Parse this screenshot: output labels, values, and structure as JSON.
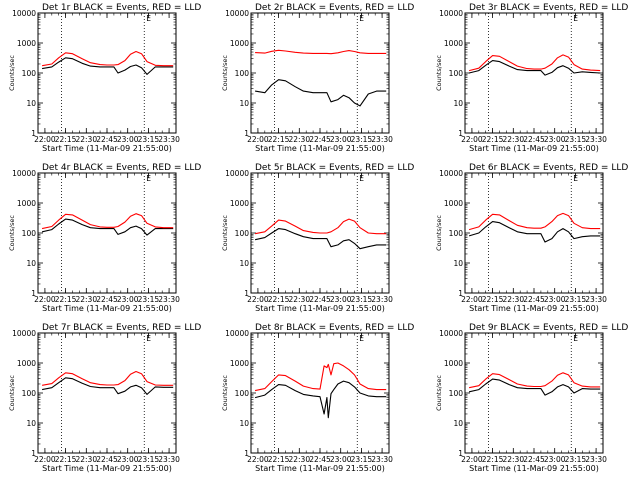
{
  "app_title": "",
  "colors": {
    "events": "#000000",
    "lld": "#ff0000",
    "background": "#ffffff",
    "axes": "#000000"
  },
  "chart_data": [
    {
      "type": "line",
      "title": "Det 1r BLACK = Events, RED = LLD",
      "xlabel": "Start Time (11-Mar-09 21:55:00)",
      "ylabel": "Counts/sec",
      "x_ticks": [
        "22:00",
        "22:15",
        "22:30",
        "22:45",
        "23:00",
        "23:15",
        "23:30"
      ],
      "y_ticks": [
        "1",
        "10",
        "100",
        "1000",
        "10000"
      ],
      "y_scale": "log",
      "ylim": [
        1,
        10000
      ],
      "xlim": [
        "21:55",
        "23:35"
      ],
      "marker_lines": [
        "22:12",
        "23:12"
      ],
      "corner_label": "E",
      "x": [
        "21:58",
        "22:05",
        "22:10",
        "22:15",
        "22:20",
        "22:27",
        "22:33",
        "22:40",
        "22:45",
        "22:50",
        "22:53",
        "22:58",
        "23:02",
        "23:06",
        "23:10",
        "23:14",
        "23:20",
        "23:26",
        "23:33"
      ],
      "series": [
        {
          "name": "Events",
          "color": "#000000",
          "values": [
            140,
            160,
            230,
            320,
            300,
            210,
            170,
            160,
            160,
            160,
            100,
            125,
            165,
            185,
            150,
            90,
            160,
            160,
            160
          ]
        },
        {
          "name": "LLD",
          "color": "#ff0000",
          "values": [
            175,
            200,
            320,
            470,
            440,
            300,
            220,
            190,
            185,
            185,
            190,
            260,
            420,
            520,
            440,
            240,
            180,
            175,
            175
          ]
        }
      ]
    },
    {
      "type": "line",
      "title": "Det 2r BLACK = Events, RED = LLD",
      "xlabel": "Start Time (11-Mar-09 21:55:00)",
      "ylabel": "Counts/sec",
      "x_ticks": [
        "22:00",
        "22:15",
        "22:30",
        "22:45",
        "23:00",
        "23:15",
        "23:30"
      ],
      "y_ticks": [
        "1",
        "10",
        "100",
        "1000",
        "10000"
      ],
      "y_scale": "log",
      "ylim": [
        1,
        10000
      ],
      "xlim": [
        "21:55",
        "23:35"
      ],
      "marker_lines": [
        "22:12",
        "23:12"
      ],
      "corner_label": "E",
      "x": [
        "21:58",
        "22:05",
        "22:10",
        "22:15",
        "22:20",
        "22:27",
        "22:33",
        "22:40",
        "22:45",
        "22:50",
        "22:53",
        "22:58",
        "23:02",
        "23:06",
        "23:10",
        "23:14",
        "23:20",
        "23:26",
        "23:33"
      ],
      "series": [
        {
          "name": "Events",
          "color": "#000000",
          "values": [
            25,
            22,
            40,
            60,
            55,
            35,
            25,
            22,
            22,
            22,
            11,
            13,
            18,
            15,
            10,
            8,
            20,
            25,
            25
          ]
        },
        {
          "name": "LLD",
          "color": "#ff0000",
          "values": [
            480,
            460,
            530,
            570,
            540,
            490,
            460,
            450,
            450,
            450,
            440,
            470,
            520,
            560,
            520,
            470,
            450,
            450,
            450
          ]
        }
      ]
    },
    {
      "type": "line",
      "title": "Det 3r BLACK = Events, RED = LLD",
      "xlabel": "Start Time (11-Mar-09 21:55:00)",
      "ylabel": "Counts/sec",
      "x_ticks": [
        "22:00",
        "22:15",
        "22:30",
        "22:45",
        "23:00",
        "23:15",
        "23:30"
      ],
      "y_ticks": [
        "1",
        "10",
        "100",
        "1000",
        "10000"
      ],
      "y_scale": "log",
      "ylim": [
        1,
        10000
      ],
      "xlim": [
        "21:55",
        "23:35"
      ],
      "marker_lines": [
        "22:12",
        "23:12"
      ],
      "corner_label": "E",
      "x": [
        "21:58",
        "22:05",
        "22:10",
        "22:15",
        "22:20",
        "22:27",
        "22:33",
        "22:40",
        "22:45",
        "22:50",
        "22:53",
        "22:58",
        "23:02",
        "23:06",
        "23:10",
        "23:14",
        "23:20",
        "23:26",
        "23:33"
      ],
      "series": [
        {
          "name": "Events",
          "color": "#000000",
          "values": [
            100,
            120,
            180,
            260,
            240,
            170,
            130,
            120,
            120,
            120,
            85,
            105,
            150,
            175,
            145,
            100,
            110,
            105,
            100
          ]
        },
        {
          "name": "LLD",
          "color": "#ff0000",
          "values": [
            120,
            145,
            240,
            380,
            360,
            240,
            170,
            140,
            135,
            135,
            145,
            200,
            320,
            400,
            340,
            190,
            135,
            125,
            120
          ]
        }
      ]
    },
    {
      "type": "line",
      "title": "Det 4r BLACK = Events, RED = LLD",
      "xlabel": "Start Time (11-Mar-09 21:55:00)",
      "ylabel": "Counts/sec",
      "x_ticks": [
        "22:00",
        "22:15",
        "22:30",
        "22:45",
        "23:00",
        "23:15",
        "23:30"
      ],
      "y_ticks": [
        "1",
        "10",
        "100",
        "1000",
        "10000"
      ],
      "y_scale": "log",
      "ylim": [
        1,
        10000
      ],
      "xlim": [
        "21:55",
        "23:35"
      ],
      "marker_lines": [
        "22:12",
        "23:12"
      ],
      "corner_label": "E",
      "x": [
        "21:58",
        "22:05",
        "22:10",
        "22:15",
        "22:20",
        "22:27",
        "22:33",
        "22:40",
        "22:45",
        "22:50",
        "22:53",
        "22:58",
        "23:02",
        "23:06",
        "23:10",
        "23:14",
        "23:20",
        "23:26",
        "23:33"
      ],
      "series": [
        {
          "name": "Events",
          "color": "#000000",
          "values": [
            110,
            130,
            200,
            290,
            270,
            190,
            150,
            140,
            140,
            140,
            90,
            110,
            150,
            170,
            140,
            85,
            140,
            140,
            140
          ]
        },
        {
          "name": "LLD",
          "color": "#ff0000",
          "values": [
            140,
            165,
            270,
            420,
            400,
            270,
            190,
            160,
            155,
            155,
            165,
            230,
            360,
            440,
            380,
            210,
            160,
            150,
            150
          ]
        }
      ]
    },
    {
      "type": "line",
      "title": "Det 5r BLACK = Events, RED = LLD",
      "xlabel": "Start Time (11-Mar-09 21:55:00)",
      "ylabel": "Counts/sec",
      "x_ticks": [
        "22:00",
        "22:15",
        "22:30",
        "22:45",
        "23:00",
        "23:15",
        "23:30"
      ],
      "y_ticks": [
        "1",
        "10",
        "100",
        "1000",
        "10000"
      ],
      "y_scale": "log",
      "ylim": [
        1,
        10000
      ],
      "xlim": [
        "21:55",
        "23:35"
      ],
      "marker_lines": [
        "22:12",
        "23:12"
      ],
      "corner_label": "E",
      "x": [
        "21:58",
        "22:05",
        "22:10",
        "22:15",
        "22:20",
        "22:27",
        "22:33",
        "22:40",
        "22:45",
        "22:50",
        "22:53",
        "22:58",
        "23:02",
        "23:06",
        "23:10",
        "23:14",
        "23:20",
        "23:26",
        "23:33"
      ],
      "series": [
        {
          "name": "Events",
          "color": "#000000",
          "values": [
            60,
            70,
            100,
            140,
            130,
            95,
            75,
            65,
            65,
            65,
            35,
            40,
            55,
            60,
            45,
            30,
            35,
            40,
            40
          ]
        },
        {
          "name": "LLD",
          "color": "#ff0000",
          "values": [
            95,
            110,
            170,
            270,
            250,
            170,
            120,
            105,
            100,
            100,
            110,
            150,
            240,
            290,
            250,
            150,
            100,
            95,
            95
          ]
        }
      ]
    },
    {
      "type": "line",
      "title": "Det 6r BLACK = Events, RED = LLD",
      "xlabel": "Start Time (11-Mar-09 21:55:00)",
      "ylabel": "Counts/sec",
      "x_ticks": [
        "22:00",
        "22:15",
        "22:30",
        "22:45",
        "23:00",
        "23:15",
        "23:30"
      ],
      "y_ticks": [
        "1",
        "10",
        "100",
        "1000",
        "10000"
      ],
      "y_scale": "log",
      "ylim": [
        1,
        10000
      ],
      "xlim": [
        "21:55",
        "23:35"
      ],
      "marker_lines": [
        "22:12",
        "23:12"
      ],
      "corner_label": "E",
      "x": [
        "21:58",
        "22:05",
        "22:10",
        "22:15",
        "22:20",
        "22:27",
        "22:33",
        "22:40",
        "22:45",
        "22:50",
        "22:53",
        "22:58",
        "23:02",
        "23:06",
        "23:10",
        "23:14",
        "23:20",
        "23:26",
        "23:33"
      ],
      "series": [
        {
          "name": "Events",
          "color": "#000000",
          "values": [
            80,
            100,
            160,
            240,
            220,
            150,
            110,
            95,
            95,
            95,
            50,
            65,
            110,
            140,
            110,
            65,
            75,
            80,
            80
          ]
        },
        {
          "name": "LLD",
          "color": "#ff0000",
          "values": [
            130,
            160,
            270,
            420,
            400,
            260,
            180,
            150,
            145,
            145,
            160,
            240,
            380,
            450,
            380,
            210,
            150,
            140,
            140
          ]
        }
      ]
    },
    {
      "type": "line",
      "title": "Det 7r BLACK = Events, RED = LLD",
      "xlabel": "Start Time (11-Mar-09 21:55:00)",
      "ylabel": "Counts/sec",
      "x_ticks": [
        "22:00",
        "22:15",
        "22:30",
        "22:45",
        "23:00",
        "23:15",
        "23:30"
      ],
      "y_ticks": [
        "1",
        "10",
        "100",
        "1000",
        "10000"
      ],
      "y_scale": "log",
      "ylim": [
        1,
        10000
      ],
      "xlim": [
        "21:55",
        "23:35"
      ],
      "marker_lines": [
        "22:12",
        "23:12"
      ],
      "corner_label": "E",
      "x": [
        "21:58",
        "22:05",
        "22:10",
        "22:15",
        "22:20",
        "22:27",
        "22:33",
        "22:40",
        "22:45",
        "22:50",
        "22:53",
        "22:58",
        "23:02",
        "23:06",
        "23:10",
        "23:14",
        "23:20",
        "23:26",
        "23:33"
      ],
      "series": [
        {
          "name": "Events",
          "color": "#000000",
          "values": [
            130,
            150,
            220,
            320,
            300,
            210,
            165,
            150,
            150,
            150,
            95,
            115,
            160,
            180,
            150,
            90,
            160,
            155,
            155
          ]
        },
        {
          "name": "LLD",
          "color": "#ff0000",
          "values": [
            180,
            205,
            320,
            470,
            440,
            300,
            220,
            190,
            185,
            185,
            190,
            260,
            420,
            520,
            440,
            240,
            185,
            180,
            180
          ]
        }
      ]
    },
    {
      "type": "line",
      "title": "Det 8r BLACK = Events, RED = LLD",
      "xlabel": "Start Time (11-Mar-09 21:55:00)",
      "ylabel": "Counts/sec",
      "x_ticks": [
        "22:00",
        "22:15",
        "22:30",
        "22:45",
        "23:00",
        "23:15",
        "23:30"
      ],
      "y_ticks": [
        "1",
        "10",
        "100",
        "1000",
        "10000"
      ],
      "y_scale": "log",
      "ylim": [
        1,
        10000
      ],
      "xlim": [
        "21:55",
        "23:35"
      ],
      "marker_lines": [
        "22:12",
        "23:12"
      ],
      "corner_label": "E",
      "x": [
        "21:58",
        "22:05",
        "22:10",
        "22:15",
        "22:20",
        "22:27",
        "22:33",
        "22:40",
        "22:45",
        "22:48",
        "22:50",
        "22:51",
        "22:53",
        "22:55",
        "22:58",
        "23:02",
        "23:06",
        "23:10",
        "23:14",
        "23:20",
        "23:26",
        "23:33"
      ],
      "series": [
        {
          "name": "Events",
          "color": "#000000",
          "values": [
            70,
            85,
            130,
            190,
            180,
            120,
            90,
            80,
            75,
            20,
            70,
            15,
            95,
            130,
            200,
            250,
            220,
            160,
            100,
            80,
            75,
            75
          ]
        },
        {
          "name": "LLD",
          "color": "#ff0000",
          "values": [
            120,
            140,
            240,
            400,
            380,
            250,
            170,
            140,
            135,
            800,
            700,
            900,
            400,
            950,
            1000,
            800,
            600,
            400,
            200,
            140,
            130,
            130
          ]
        }
      ]
    },
    {
      "type": "line",
      "title": "Det 9r BLACK = Events, RED = LLD",
      "xlabel": "Start Time (11-Mar-09 21:55:00)",
      "ylabel": "Counts/sec",
      "x_ticks": [
        "22:00",
        "22:15",
        "22:30",
        "22:45",
        "23:00",
        "23:15",
        "23:30"
      ],
      "y_ticks": [
        "1",
        "10",
        "100",
        "1000",
        "10000"
      ],
      "y_scale": "log",
      "ylim": [
        1,
        10000
      ],
      "xlim": [
        "21:55",
        "23:35"
      ],
      "marker_lines": [
        "22:12",
        "23:12"
      ],
      "corner_label": "E",
      "x": [
        "21:58",
        "22:05",
        "22:10",
        "22:15",
        "22:20",
        "22:27",
        "22:33",
        "22:40",
        "22:45",
        "22:50",
        "22:53",
        "22:58",
        "23:02",
        "23:06",
        "23:10",
        "23:14",
        "23:20",
        "23:26",
        "23:33"
      ],
      "series": [
        {
          "name": "Events",
          "color": "#000000",
          "values": [
            110,
            130,
            200,
            290,
            270,
            190,
            150,
            140,
            140,
            140,
            85,
            110,
            160,
            190,
            160,
            100,
            140,
            135,
            135
          ]
        },
        {
          "name": "LLD",
          "color": "#ff0000",
          "values": [
            150,
            175,
            290,
            440,
            410,
            280,
            200,
            170,
            165,
            165,
            175,
            250,
            390,
            470,
            400,
            220,
            170,
            160,
            160
          ]
        }
      ]
    }
  ]
}
